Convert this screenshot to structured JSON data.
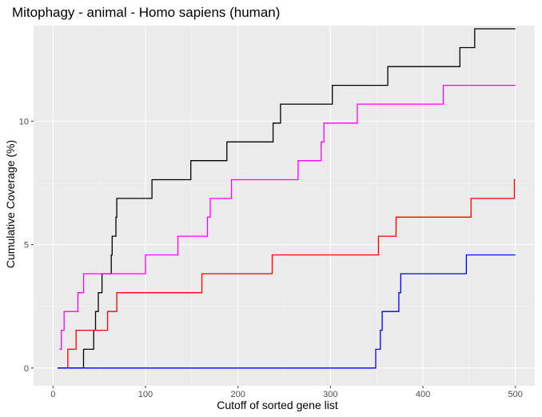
{
  "chart_data": {
    "type": "line",
    "title": "Mitophagy - animal - Homo sapiens (human)",
    "xlabel": "Cutoff of sorted gene list",
    "ylabel": "Cumulative Coverage (%)",
    "xlim": [
      -21,
      521
    ],
    "ylim": [
      -0.72,
      13.87
    ],
    "x_ticks": [
      0,
      100,
      200,
      300,
      400,
      500
    ],
    "x_tick_labels": [
      "0",
      "100",
      "200",
      "300",
      "400",
      "500"
    ],
    "y_ticks": [
      0,
      5,
      10
    ],
    "y_tick_labels": [
      "0",
      "5",
      "10"
    ],
    "grid": true,
    "legend": "none",
    "colors": {
      "panel_background": "#ebebeb",
      "grid_major": "#ffffff",
      "grid_minor": "#f5f5f5"
    },
    "series": [
      {
        "color": "#000000",
        "points": [
          [
            5,
            0
          ],
          [
            33,
            0
          ],
          [
            33,
            0.76
          ],
          [
            44,
            0.76
          ],
          [
            44,
            1.53
          ],
          [
            46,
            1.53
          ],
          [
            46,
            2.29
          ],
          [
            49,
            2.29
          ],
          [
            49,
            3.05
          ],
          [
            53,
            3.05
          ],
          [
            53,
            3.82
          ],
          [
            63,
            3.82
          ],
          [
            63,
            4.58
          ],
          [
            64,
            4.58
          ],
          [
            64,
            5.34
          ],
          [
            68,
            5.34
          ],
          [
            68,
            6.11
          ],
          [
            69,
            6.11
          ],
          [
            69,
            6.87
          ],
          [
            107,
            6.87
          ],
          [
            107,
            7.63
          ],
          [
            149,
            7.63
          ],
          [
            149,
            8.4
          ],
          [
            188,
            8.4
          ],
          [
            188,
            9.16
          ],
          [
            238,
            9.16
          ],
          [
            238,
            9.92
          ],
          [
            246,
            9.92
          ],
          [
            246,
            10.69
          ],
          [
            302,
            10.69
          ],
          [
            302,
            11.45
          ],
          [
            362,
            11.45
          ],
          [
            362,
            12.21
          ],
          [
            440,
            12.21
          ],
          [
            440,
            12.98
          ],
          [
            456,
            12.98
          ],
          [
            456,
            13.74
          ],
          [
            500,
            13.74
          ]
        ]
      },
      {
        "color": "#ff00ff",
        "points": [
          [
            7,
            0.76
          ],
          [
            9,
            0.76
          ],
          [
            9,
            1.53
          ],
          [
            12,
            1.53
          ],
          [
            12,
            2.29
          ],
          [
            27,
            2.29
          ],
          [
            27,
            3.05
          ],
          [
            33,
            3.05
          ],
          [
            33,
            3.82
          ],
          [
            100,
            3.82
          ],
          [
            100,
            4.58
          ],
          [
            135,
            4.58
          ],
          [
            135,
            5.34
          ],
          [
            167,
            5.34
          ],
          [
            167,
            6.11
          ],
          [
            170,
            6.11
          ],
          [
            170,
            6.87
          ],
          [
            193,
            6.87
          ],
          [
            193,
            7.63
          ],
          [
            265,
            7.63
          ],
          [
            265,
            8.4
          ],
          [
            290,
            8.4
          ],
          [
            290,
            9.16
          ],
          [
            293,
            9.16
          ],
          [
            293,
            9.92
          ],
          [
            329,
            9.92
          ],
          [
            329,
            10.69
          ],
          [
            422,
            10.69
          ],
          [
            422,
            11.45
          ],
          [
            500,
            11.45
          ]
        ]
      },
      {
        "color": "#ff0000",
        "points": [
          [
            15,
            0
          ],
          [
            16,
            0
          ],
          [
            16,
            0.76
          ],
          [
            25,
            0.76
          ],
          [
            25,
            1.53
          ],
          [
            59,
            1.53
          ],
          [
            59,
            2.29
          ],
          [
            69,
            2.29
          ],
          [
            69,
            3.05
          ],
          [
            161,
            3.05
          ],
          [
            161,
            3.82
          ],
          [
            237,
            3.82
          ],
          [
            237,
            4.58
          ],
          [
            352,
            4.58
          ],
          [
            352,
            5.34
          ],
          [
            371,
            5.34
          ],
          [
            371,
            6.11
          ],
          [
            452,
            6.11
          ],
          [
            452,
            6.87
          ],
          [
            499,
            6.87
          ],
          [
            499,
            7.63
          ],
          [
            500,
            7.63
          ]
        ]
      },
      {
        "color": "#0000ff",
        "points": [
          [
            5,
            0
          ],
          [
            349,
            0
          ],
          [
            349,
            0.76
          ],
          [
            354,
            0.76
          ],
          [
            354,
            1.53
          ],
          [
            356,
            1.53
          ],
          [
            356,
            2.29
          ],
          [
            374,
            2.29
          ],
          [
            374,
            3.05
          ],
          [
            376,
            3.05
          ],
          [
            376,
            3.82
          ],
          [
            447,
            3.82
          ],
          [
            447,
            4.58
          ],
          [
            500,
            4.58
          ]
        ]
      }
    ]
  }
}
